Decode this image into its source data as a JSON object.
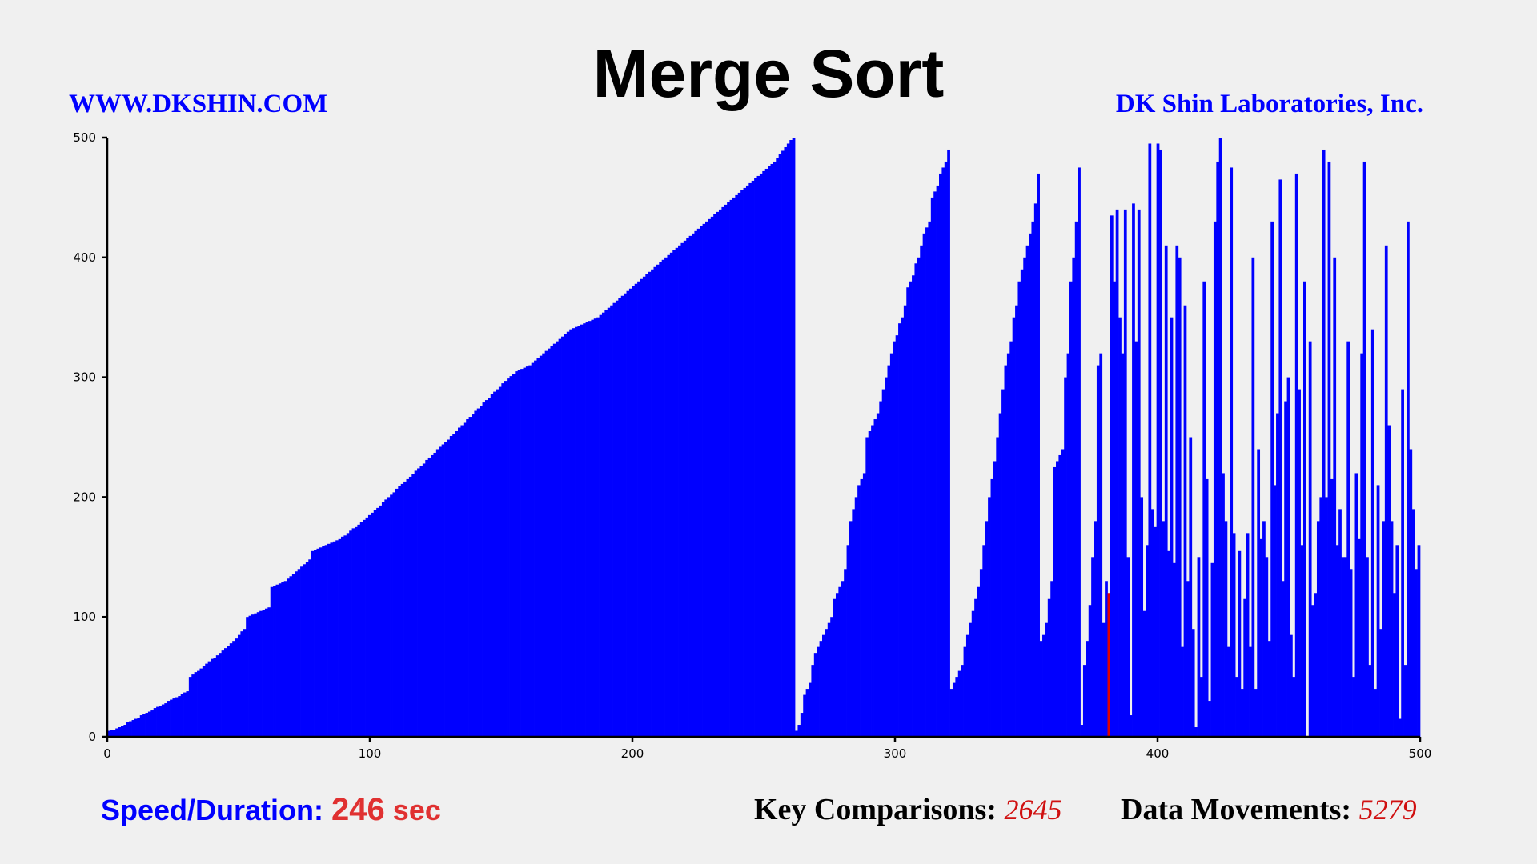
{
  "header": {
    "title": "Merge Sort",
    "website": "WWW.DKSHIN.COM",
    "company": "DK Shin Laboratories, Inc."
  },
  "footer": {
    "speed_label": "Speed/Duration:",
    "speed_value": "246",
    "speed_unit": "sec",
    "comparisons_label": "Key Comparisons:",
    "comparisons_value": "2645",
    "movements_label": "Data Movements:",
    "movements_value": "5279"
  },
  "colors": {
    "bar": "#0000ff",
    "highlight": "#e00000",
    "background": "#f0f0f0"
  },
  "chart_data": {
    "type": "bar",
    "title": "Merge Sort",
    "xlim": [
      0,
      500
    ],
    "ylim": [
      0,
      500
    ],
    "xticks": [
      0,
      100,
      200,
      300,
      400,
      500
    ],
    "yticks": [
      0,
      100,
      200,
      300,
      400,
      500
    ],
    "grid": false,
    "highlight_index": 368,
    "series": [
      {
        "values": [
          5,
          6,
          6,
          7,
          8,
          9,
          10,
          12,
          13,
          14,
          15,
          16,
          18,
          19,
          20,
          21,
          22,
          24,
          25,
          26,
          27,
          28,
          30,
          31,
          32,
          33,
          34,
          36,
          37,
          38,
          50,
          52,
          54,
          55,
          57,
          59,
          61,
          63,
          65,
          66,
          68,
          70,
          72,
          74,
          76,
          78,
          80,
          82,
          85,
          88,
          90,
          100,
          101,
          102,
          103,
          104,
          105,
          106,
          107,
          108,
          125,
          126,
          127,
          128,
          129,
          130,
          132,
          134,
          136,
          138,
          140,
          142,
          144,
          146,
          148,
          155,
          156,
          157,
          158,
          159,
          160,
          161,
          162,
          163,
          164,
          165,
          167,
          168,
          170,
          172,
          174,
          175,
          177,
          179,
          181,
          183,
          185,
          187,
          189,
          191,
          193,
          196,
          198,
          200,
          202,
          204,
          207,
          209,
          211,
          213,
          215,
          217,
          219,
          222,
          224,
          226,
          228,
          231,
          233,
          235,
          237,
          240,
          242,
          244,
          246,
          248,
          251,
          253,
          255,
          258,
          260,
          262,
          265,
          267,
          269,
          272,
          274,
          276,
          279,
          281,
          283,
          286,
          288,
          290,
          292,
          295,
          297,
          299,
          301,
          303,
          305,
          306,
          307,
          308,
          309,
          310,
          312,
          314,
          316,
          318,
          320,
          322,
          324,
          326,
          328,
          330,
          332,
          334,
          336,
          338,
          340,
          341,
          342,
          343,
          344,
          345,
          346,
          347,
          348,
          349,
          350,
          352,
          354,
          356,
          358,
          360,
          362,
          364,
          366,
          368,
          370,
          372,
          374,
          376,
          378,
          380,
          382,
          384,
          386,
          388,
          390,
          392,
          394,
          396,
          398,
          400,
          402,
          404,
          406,
          408,
          410,
          412,
          414,
          416,
          418,
          420,
          422,
          424,
          426,
          428,
          430,
          432,
          434,
          436,
          438,
          440,
          442,
          444,
          446,
          448,
          450,
          452,
          454,
          456,
          458,
          460,
          462,
          464,
          466,
          468,
          470,
          472,
          474,
          476,
          478,
          480,
          483,
          486,
          489,
          492,
          495,
          498,
          500,
          5,
          10,
          20,
          35,
          40,
          45,
          60,
          70,
          75,
          80,
          85,
          90,
          95,
          100,
          115,
          120,
          125,
          130,
          140,
          160,
          180,
          190,
          200,
          210,
          215,
          220,
          250,
          255,
          260,
          265,
          270,
          280,
          290,
          300,
          310,
          320,
          330,
          335,
          345,
          350,
          360,
          375,
          380,
          385,
          395,
          400,
          410,
          420,
          425,
          430,
          450,
          455,
          460,
          470,
          475,
          480,
          490,
          40,
          45,
          50,
          55,
          60,
          75,
          85,
          95,
          105,
          115,
          125,
          140,
          160,
          180,
          200,
          215,
          230,
          250,
          270,
          290,
          310,
          320,
          330,
          350,
          360,
          380,
          390,
          400,
          410,
          420,
          430,
          445,
          470,
          80,
          85,
          95,
          115,
          130,
          225,
          230,
          235,
          240,
          300,
          320,
          380,
          400,
          430,
          475,
          10,
          60,
          80,
          110,
          150,
          180,
          310,
          320,
          95,
          130,
          120,
          435,
          380,
          440,
          350,
          320,
          440,
          150,
          18,
          445,
          330,
          440,
          200,
          105,
          160,
          495,
          190,
          175,
          495,
          490,
          180,
          410,
          155,
          350,
          145,
          410,
          400,
          75,
          360,
          130,
          250,
          90,
          8,
          150,
          50,
          380,
          215,
          30,
          145,
          430,
          480,
          500,
          220,
          180,
          75,
          475,
          170,
          50,
          155,
          40,
          115,
          170,
          75,
          400,
          40,
          240,
          165,
          180,
          150,
          80,
          430,
          210,
          270,
          465,
          130,
          280,
          300,
          85,
          50,
          470,
          290,
          160,
          380,
          0,
          330,
          110,
          120,
          180,
          200,
          490,
          200,
          480,
          215,
          400,
          160,
          190,
          150,
          150,
          330,
          140,
          50,
          220,
          165,
          320,
          480,
          150,
          60,
          340,
          40,
          210,
          90,
          180,
          410,
          260,
          180,
          120,
          160,
          15,
          290,
          60,
          430,
          240,
          190,
          140,
          160
        ]
      }
    ]
  }
}
